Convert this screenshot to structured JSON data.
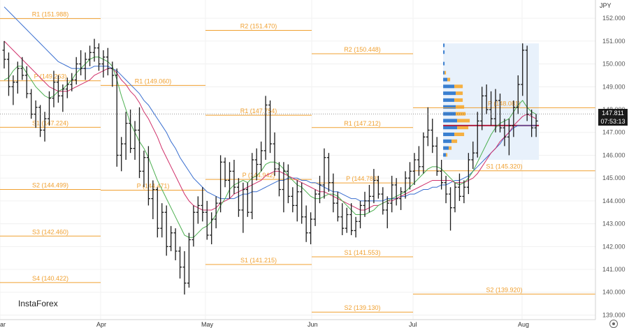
{
  "meta": {
    "currency": "JPY",
    "brand": "InstaForex",
    "settings_icon": "gear-icon"
  },
  "colors": {
    "level": "#f0a030",
    "bar": "#1a1a1a",
    "ma_fast": "#4caf50",
    "ma_mid": "#d0306a",
    "ma_slow": "#3a6fd0",
    "profile_up": "#3a7fd0",
    "profile_down": "#f5b042",
    "profile_bg": "#e8f1fb",
    "poc": "#b02040"
  },
  "current_price": {
    "value": "147.811",
    "timer": "07:53:13"
  },
  "chart_data": {
    "type": "bar",
    "subtype": "ohlc",
    "ylim": [
      138.8,
      152.8
    ],
    "yticks": [
      "139.000",
      "140.000",
      "141.000",
      "142.000",
      "143.000",
      "144.000",
      "145.000",
      "146.000",
      "147.000",
      "148.000",
      "149.000",
      "150.000",
      "151.000",
      "152.000"
    ],
    "xticks": [
      "ar",
      "Apr",
      "May",
      "Jun",
      "Jul",
      "Aug"
    ],
    "levels": [
      {
        "label": "R1 (151.988)",
        "value": 151.988,
        "from": "2024-02-26",
        "to": "2024-03-28"
      },
      {
        "label": "P (149.263)",
        "value": 149.263,
        "from": "2024-02-26",
        "to": "2024-03-28"
      },
      {
        "label": "S1 (147.224)",
        "value": 147.224,
        "from": "2024-02-26",
        "to": "2024-03-28"
      },
      {
        "label": "S2 (144.499)",
        "value": 144.499,
        "from": "2024-02-26",
        "to": "2024-03-28"
      },
      {
        "label": "S3 (142.460)",
        "value": 142.46,
        "from": "2024-02-26",
        "to": "2024-03-28"
      },
      {
        "label": "S4 (140.422)",
        "value": 140.422,
        "from": "2024-02-26",
        "to": "2024-03-28"
      },
      {
        "label": "R1 (149.060)",
        "value": 149.06,
        "from": "2024-04-01",
        "to": "2024-04-30"
      },
      {
        "label": "P (144.471)",
        "value": 144.471,
        "from": "2024-04-01",
        "to": "2024-04-30"
      },
      {
        "label": "S1 (141.215)",
        "value": 141.215,
        "from": "2024-05-01",
        "to": "2024-05-31"
      },
      {
        "label": "R2 (151.470)",
        "value": 151.47,
        "from": "2024-05-01",
        "to": "2024-05-31"
      },
      {
        "label": "R1 (147.754)",
        "value": 147.754,
        "from": "2024-05-01",
        "to": "2024-05-31"
      },
      {
        "label": "P (144.942)",
        "value": 144.942,
        "from": "2024-05-01",
        "to": "2024-05-31"
      },
      {
        "label": "R2 (150.448)",
        "value": 150.448,
        "from": "2024-06-03",
        "to": "2024-06-28"
      },
      {
        "label": "R1 (147.212)",
        "value": 147.212,
        "from": "2024-06-03",
        "to": "2024-06-28"
      },
      {
        "label": "P (144.788)",
        "value": 144.788,
        "from": "2024-06-03",
        "to": "2024-06-28"
      },
      {
        "label": "S1 (141.553)",
        "value": 141.553,
        "from": "2024-06-03",
        "to": "2024-06-28"
      },
      {
        "label": "S2 (139.130)",
        "value": 139.13,
        "from": "2024-06-03",
        "to": "2024-06-28"
      },
      {
        "label": "P (148.081)",
        "value": 148.081,
        "from": "2024-07-01",
        "to": "2024-08-16"
      },
      {
        "label": "S1 (145.320)",
        "value": 145.32,
        "from": "2024-07-01",
        "to": "2024-08-16"
      },
      {
        "label": "S2 (139.920)",
        "value": 139.92,
        "from": "2024-07-01",
        "to": "2024-08-16"
      }
    ],
    "ohlc": [
      [
        150.6,
        151.0,
        149.8,
        150.2
      ],
      [
        150.2,
        150.5,
        148.6,
        149.0
      ],
      [
        149.0,
        149.5,
        148.2,
        149.2
      ],
      [
        149.2,
        150.1,
        148.7,
        149.8
      ],
      [
        149.8,
        150.3,
        149.3,
        149.5
      ],
      [
        149.5,
        149.9,
        148.5,
        148.7
      ],
      [
        148.7,
        148.9,
        147.6,
        147.8
      ],
      [
        147.8,
        148.4,
        147.2,
        148.1
      ],
      [
        148.1,
        148.2,
        146.8,
        147.1
      ],
      [
        147.1,
        147.9,
        146.6,
        147.6
      ],
      [
        147.6,
        148.8,
        147.3,
        148.5
      ],
      [
        148.5,
        149.7,
        148.1,
        149.2
      ],
      [
        149.2,
        149.5,
        148.3,
        148.6
      ],
      [
        148.6,
        149.1,
        147.9,
        148.9
      ],
      [
        148.9,
        149.4,
        148.5,
        149.1
      ],
      [
        149.1,
        149.6,
        148.8,
        149.3
      ],
      [
        149.3,
        150.3,
        149.1,
        150.0
      ],
      [
        150.0,
        150.6,
        149.5,
        149.8
      ],
      [
        149.8,
        150.5,
        149.3,
        150.2
      ],
      [
        150.2,
        150.8,
        149.9,
        150.5
      ],
      [
        150.5,
        151.1,
        150.1,
        150.7
      ],
      [
        150.7,
        150.9,
        149.7,
        150.0
      ],
      [
        150.0,
        150.6,
        149.4,
        150.3
      ],
      [
        150.3,
        150.7,
        149.5,
        149.8
      ],
      [
        149.8,
        150.1,
        149.0,
        149.5
      ],
      [
        149.5,
        149.8,
        145.5,
        146.0
      ],
      [
        146.0,
        146.8,
        145.3,
        146.5
      ],
      [
        146.5,
        147.9,
        145.8,
        147.4
      ],
      [
        147.4,
        148.0,
        146.1,
        146.3
      ],
      [
        146.3,
        147.5,
        145.8,
        147.1
      ],
      [
        147.1,
        148.1,
        145.0,
        145.3
      ],
      [
        145.3,
        146.2,
        144.6,
        145.9
      ],
      [
        145.9,
        146.4,
        143.8,
        144.1
      ],
      [
        144.1,
        144.9,
        143.2,
        144.5
      ],
      [
        144.5,
        144.6,
        142.4,
        142.8
      ],
      [
        142.8,
        143.9,
        142.4,
        143.5
      ],
      [
        143.5,
        143.8,
        141.6,
        142.0
      ],
      [
        142.0,
        142.9,
        141.8,
        142.6
      ],
      [
        142.6,
        142.8,
        141.4,
        141.8
      ],
      [
        141.8,
        142.0,
        140.6,
        141.1
      ],
      [
        141.1,
        141.8,
        139.9,
        140.4
      ],
      [
        140.4,
        142.6,
        140.2,
        142.3
      ],
      [
        142.3,
        143.8,
        142.0,
        143.5
      ],
      [
        143.5,
        144.2,
        143.0,
        143.8
      ],
      [
        143.8,
        144.6,
        143.1,
        143.5
      ],
      [
        143.5,
        144.0,
        142.3,
        142.5
      ],
      [
        142.5,
        143.5,
        142.1,
        143.2
      ],
      [
        143.2,
        144.2,
        142.8,
        143.9
      ],
      [
        143.9,
        146.0,
        143.5,
        145.7
      ],
      [
        145.7,
        145.9,
        144.6,
        144.9
      ],
      [
        144.9,
        145.7,
        144.1,
        145.3
      ],
      [
        145.3,
        145.8,
        144.3,
        144.6
      ],
      [
        144.6,
        145.0,
        143.3,
        143.6
      ],
      [
        143.6,
        144.8,
        142.6,
        144.5
      ],
      [
        144.5,
        144.8,
        143.3,
        143.5
      ],
      [
        143.5,
        146.1,
        143.2,
        145.8
      ],
      [
        145.8,
        146.3,
        144.9,
        145.6
      ],
      [
        145.6,
        146.6,
        145.3,
        146.2
      ],
      [
        146.2,
        148.6,
        145.8,
        148.2
      ],
      [
        148.2,
        148.4,
        146.1,
        146.5
      ],
      [
        146.5,
        147.0,
        145.1,
        145.4
      ],
      [
        145.4,
        145.7,
        144.2,
        144.5
      ],
      [
        144.5,
        145.7,
        143.5,
        145.3
      ],
      [
        145.3,
        145.6,
        143.9,
        144.2
      ],
      [
        144.2,
        144.6,
        143.5,
        143.8
      ],
      [
        143.8,
        144.9,
        143.1,
        144.4
      ],
      [
        144.4,
        144.8,
        143.0,
        143.3
      ],
      [
        143.3,
        143.8,
        142.2,
        142.6
      ],
      [
        142.6,
        143.5,
        142.1,
        143.2
      ],
      [
        143.2,
        144.5,
        142.9,
        144.3
      ],
      [
        144.3,
        145.1,
        143.9,
        144.7
      ],
      [
        144.7,
        146.3,
        144.1,
        145.9
      ],
      [
        145.9,
        146.1,
        144.4,
        144.8
      ],
      [
        144.8,
        145.2,
        143.5,
        143.9
      ],
      [
        143.9,
        144.4,
        143.1,
        143.3
      ],
      [
        143.3,
        143.9,
        142.5,
        142.8
      ],
      [
        142.8,
        143.7,
        142.6,
        143.4
      ],
      [
        143.4,
        143.9,
        142.5,
        142.7
      ],
      [
        142.7,
        143.3,
        142.4,
        143.1
      ],
      [
        143.1,
        144.0,
        142.8,
        143.8
      ],
      [
        143.8,
        144.4,
        143.3,
        144.0
      ],
      [
        144.0,
        144.7,
        143.5,
        144.2
      ],
      [
        144.2,
        145.4,
        143.9,
        144.9
      ],
      [
        144.9,
        145.1,
        144.1,
        144.3
      ],
      [
        144.3,
        144.6,
        143.4,
        143.6
      ],
      [
        143.6,
        144.2,
        142.8,
        143.9
      ],
      [
        143.9,
        145.1,
        143.5,
        144.7
      ],
      [
        144.7,
        145.0,
        143.8,
        144.1
      ],
      [
        144.1,
        144.6,
        143.6,
        144.4
      ],
      [
        144.4,
        145.3,
        144.1,
        145.0
      ],
      [
        145.0,
        145.7,
        144.5,
        145.3
      ],
      [
        145.3,
        146.1,
        144.7,
        145.8
      ],
      [
        145.8,
        146.4,
        145.1,
        145.5
      ],
      [
        145.5,
        147.0,
        145.2,
        146.8
      ],
      [
        146.8,
        148.1,
        146.4,
        147.1
      ],
      [
        147.1,
        147.6,
        146.1,
        146.4
      ],
      [
        146.4,
        146.8,
        145.1,
        145.3
      ],
      [
        145.3,
        145.8,
        144.5,
        144.8
      ],
      [
        144.8,
        145.1,
        143.9,
        144.3
      ],
      [
        144.3,
        144.6,
        142.7,
        143.7
      ],
      [
        143.7,
        144.8,
        143.5,
        144.6
      ],
      [
        144.6,
        145.2,
        144.0,
        144.2
      ],
      [
        144.2,
        144.9,
        143.9,
        144.6
      ],
      [
        144.6,
        146.1,
        144.3,
        145.8
      ],
      [
        145.8,
        146.6,
        145.4,
        146.1
      ],
      [
        146.1,
        147.9,
        145.9,
        147.5
      ],
      [
        147.5,
        149.0,
        147.1,
        148.6
      ],
      [
        148.6,
        149.1,
        147.8,
        148.0
      ],
      [
        148.0,
        148.8,
        147.3,
        147.6
      ],
      [
        147.6,
        148.9,
        147.0,
        148.4
      ],
      [
        148.4,
        148.7,
        147.0,
        147.2
      ],
      [
        147.2,
        147.6,
        146.4,
        146.8
      ],
      [
        146.8,
        147.6,
        146.0,
        147.3
      ],
      [
        147.3,
        148.4,
        146.8,
        148.1
      ],
      [
        148.1,
        149.5,
        147.8,
        149.1
      ],
      [
        149.1,
        150.9,
        148.6,
        150.6
      ],
      [
        150.6,
        150.8,
        147.5,
        147.8
      ],
      [
        147.8,
        148.0,
        146.8,
        147.2
      ],
      [
        147.2,
        147.8,
        146.8,
        147.5
      ]
    ],
    "ma_fast": [
      149.3,
      149.4,
      149.7,
      149.9,
      149.9,
      149.6,
      149.3,
      149.0,
      148.8,
      148.6,
      148.5,
      148.6,
      148.8,
      148.9,
      149.1,
      149.3,
      149.6,
      149.8,
      150.0,
      150.2,
      150.3,
      150.3,
      150.2,
      150.1,
      149.9,
      149.3,
      148.6,
      148.0,
      147.4,
      147.0,
      146.6,
      146.3,
      145.9,
      145.4,
      144.9,
      144.5,
      144.1,
      143.7,
      143.3,
      142.9,
      142.5,
      142.4,
      142.4,
      142.6,
      142.8,
      142.9,
      143.1,
      143.4,
      143.8,
      144.1,
      144.5,
      144.7,
      144.8,
      144.9,
      144.8,
      145.0,
      145.1,
      145.3,
      145.6,
      145.7,
      145.7,
      145.6,
      145.4,
      145.1,
      144.9,
      144.7,
      144.6,
      144.4,
      144.2,
      144.1,
      144.1,
      144.2,
      144.3,
      144.3,
      144.2,
      144.0,
      143.8,
      143.6,
      143.4,
      143.4,
      143.4,
      143.5,
      143.6,
      143.8,
      143.9,
      144.0,
      144.1,
      144.2,
      144.3,
      144.4,
      144.6,
      144.8,
      145.0,
      145.2,
      145.4,
      145.5,
      145.5,
      145.4,
      145.2,
      145.0,
      144.8,
      144.7,
      144.8,
      145.0,
      145.3,
      145.7,
      146.1,
      146.5,
      146.9,
      147.2,
      147.4,
      147.5,
      147.6,
      147.9,
      148.2,
      148.4,
      148.1,
      147.9,
      147.8
    ],
    "ma_mid": [
      151.0,
      150.8,
      150.6,
      150.4,
      150.2,
      150.0,
      149.8,
      149.6,
      149.4,
      149.2,
      149.0,
      148.9,
      148.8,
      148.8,
      148.8,
      148.9,
      149.0,
      149.1,
      149.2,
      149.3,
      149.5,
      149.6,
      149.7,
      149.8,
      149.8,
      149.6,
      149.3,
      149.1,
      148.8,
      148.6,
      148.3,
      147.9,
      147.6,
      147.2,
      146.8,
      146.3,
      145.9,
      145.5,
      145.1,
      144.7,
      144.3,
      144.0,
      143.8,
      143.7,
      143.6,
      143.6,
      143.6,
      143.7,
      143.9,
      144.0,
      144.1,
      144.3,
      144.4,
      144.5,
      144.6,
      144.7,
      144.8,
      144.9,
      145.1,
      145.2,
      145.3,
      145.3,
      145.2,
      145.1,
      145.0,
      144.9,
      144.8,
      144.7,
      144.6,
      144.5,
      144.4,
      144.4,
      144.3,
      144.2,
      144.1,
      144.0,
      143.9,
      143.8,
      143.7,
      143.6,
      143.6,
      143.7,
      143.8,
      143.8,
      143.9,
      144.0,
      144.0,
      144.1,
      144.2,
      144.3,
      144.4,
      144.5,
      144.6,
      144.7,
      144.8,
      144.9,
      144.9,
      144.9,
      144.9,
      144.9,
      144.8,
      144.8,
      144.8,
      144.9,
      145.0,
      145.2,
      145.5,
      145.8,
      146.1,
      146.3,
      146.6,
      146.8,
      147.0,
      147.3,
      147.5,
      147.7,
      147.8,
      147.7,
      147.6
    ],
    "ma_slow": [
      152.5,
      152.3,
      152.1,
      151.9,
      151.7,
      151.5,
      151.3,
      151.1,
      150.9,
      150.7,
      150.5,
      150.3,
      150.1,
      150.0,
      149.9,
      149.8,
      149.8,
      149.8,
      149.8,
      149.8,
      149.9,
      149.9,
      149.9,
      149.9,
      149.8,
      149.7,
      149.5,
      149.3,
      149.1,
      148.9,
      148.7,
      148.4,
      148.2,
      147.9,
      147.6,
      147.3,
      147.0,
      146.6,
      146.3,
      145.9,
      145.6,
      145.3,
      145.0,
      144.8,
      144.6,
      144.4,
      144.3,
      144.2,
      144.1,
      144.1,
      144.1,
      144.1,
      144.2,
      144.3,
      144.3,
      144.4,
      144.4,
      144.5,
      144.6,
      144.7,
      144.8,
      144.9,
      144.9,
      145.0,
      145.0,
      145.0,
      144.9,
      144.9,
      144.8,
      144.8,
      144.7,
      144.6,
      144.5,
      144.4,
      144.4,
      144.3,
      144.2,
      144.1,
      144.1,
      144.0,
      144.0,
      144.0,
      144.0,
      144.0,
      144.0,
      144.1,
      144.1,
      144.1,
      144.2,
      144.2,
      144.3,
      144.3,
      144.4,
      144.5,
      144.5,
      144.6,
      144.6,
      144.7,
      144.7,
      144.8,
      144.9,
      144.9,
      145.0,
      145.1,
      145.3,
      145.5,
      145.7,
      145.9,
      146.1,
      146.3,
      146.5,
      146.8,
      147.0,
      147.2,
      147.3,
      147.3,
      147.3,
      147.3,
      147.3
    ],
    "volume_profile": [
      {
        "price": 146.0,
        "buy": 2,
        "sell": 1
      },
      {
        "price": 146.3,
        "buy": 4,
        "sell": 2
      },
      {
        "price": 146.6,
        "buy": 6,
        "sell": 4
      },
      {
        "price": 146.9,
        "buy": 8,
        "sell": 7
      },
      {
        "price": 147.2,
        "buy": 10,
        "sell": 8
      },
      {
        "price": 147.5,
        "buy": 10,
        "sell": 9
      },
      {
        "price": 147.8,
        "buy": 9,
        "sell": 7
      },
      {
        "price": 148.1,
        "buy": 9,
        "sell": 6
      },
      {
        "price": 148.4,
        "buy": 8,
        "sell": 6
      },
      {
        "price": 148.7,
        "buy": 9,
        "sell": 5
      },
      {
        "price": 149.0,
        "buy": 8,
        "sell": 6
      },
      {
        "price": 149.3,
        "buy": 3,
        "sell": 2
      },
      {
        "price": 149.6,
        "buy": 1,
        "sell": 1
      },
      {
        "price": 150.0,
        "buy": 1,
        "sell": 0
      },
      {
        "price": 150.5,
        "buy": 1,
        "sell": 0
      },
      {
        "price": 150.8,
        "buy": 1,
        "sell": 0
      }
    ],
    "poc": 147.3,
    "range_box": {
      "from_bar": 98,
      "to_bar": 118,
      "low": 145.8,
      "high": 150.9
    }
  }
}
